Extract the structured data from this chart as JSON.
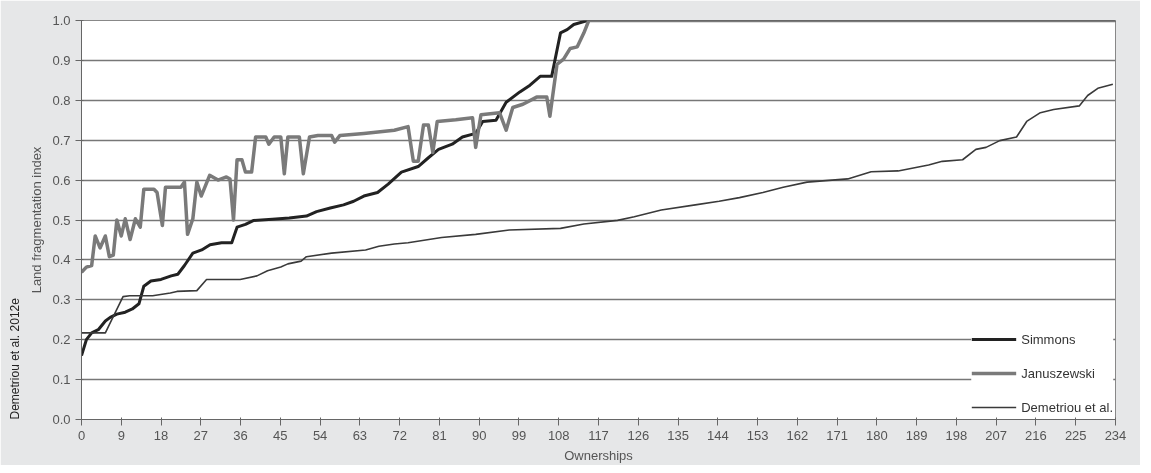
{
  "chart_data": {
    "type": "line",
    "xlabel": "Ownerships",
    "ylabel": "Land fragmentation index",
    "annotations": [
      "Demetriou et al. 2012e"
    ],
    "xlim": [
      0,
      234
    ],
    "xticks": [
      0,
      9,
      18,
      27,
      36,
      45,
      54,
      63,
      72,
      81,
      90,
      99,
      108,
      117,
      126,
      135,
      144,
      153,
      162,
      171,
      180,
      189,
      198,
      207,
      216,
      225,
      234
    ],
    "ylim": [
      0,
      1
    ],
    "yticks": [
      {
        "value": 0,
        "label": "0.0"
      },
      0.1,
      0.2,
      0.3,
      0.4,
      0.5,
      0.6,
      0.7,
      0.8,
      0.9,
      {
        "value": 1,
        "label": "1.0"
      }
    ],
    "grid": "y",
    "legend": "bottom right",
    "marker": "none",
    "line_style": "solid",
    "series": [
      {
        "name": "Simmons",
        "color": "#222222",
        "x": [
          0,
          1.1,
          2.3,
          3.8,
          5.4,
          6.5,
          8,
          9.9,
          11.5,
          13,
          14.1,
          15.7,
          18,
          20.3,
          21.8,
          23.3,
          25.2,
          27.2,
          29.1,
          31.7,
          34,
          35.2,
          37.1,
          39,
          43.2,
          47,
          50.9,
          53.2,
          56.3,
          59.3,
          61.6,
          63.9,
          67,
          69.4,
          72.4,
          76.2,
          78.5,
          80.8,
          83.9,
          86.2,
          89.2,
          90.8,
          93.8,
          96.1,
          99.2,
          101.5,
          103.8,
          106.4,
          108.4,
          109.9,
          111.4,
          114.5,
          234
        ],
        "values": [
          0.16,
          0.2,
          0.217,
          0.225,
          0.247,
          0.256,
          0.264,
          0.269,
          0.277,
          0.29,
          0.334,
          0.347,
          0.351,
          0.36,
          0.364,
          0.386,
          0.417,
          0.425,
          0.438,
          0.443,
          0.443,
          0.482,
          0.489,
          0.499,
          0.502,
          0.505,
          0.51,
          0.521,
          0.53,
          0.538,
          0.547,
          0.56,
          0.569,
          0.59,
          0.62,
          0.634,
          0.656,
          0.677,
          0.69,
          0.708,
          0.717,
          0.747,
          0.75,
          0.795,
          0.821,
          0.838,
          0.86,
          0.86,
          0.969,
          0.977,
          0.99,
          1.0,
          1.0
        ]
      },
      {
        "name": "Januszewski",
        "color": "#7a7a7a",
        "x": [
          0,
          1.1,
          2.3,
          3.1,
          4.2,
          5.4,
          6.3,
          7.2,
          8,
          9,
          9.9,
          11,
          12.2,
          13.3,
          14.1,
          16.4,
          17.1,
          18.3,
          19,
          22.5,
          23.3,
          24,
          25.2,
          26.1,
          27.1,
          29,
          30.9,
          32.8,
          33.6,
          34.4,
          35.2,
          36.3,
          37.1,
          38.5,
          39.4,
          41.7,
          42.4,
          43.6,
          45.1,
          45.9,
          46.7,
          49.3,
          50.2,
          51.6,
          53.5,
          56.6,
          57.3,
          58.5,
          63.9,
          70.8,
          73.9,
          75.1,
          76.2,
          77.4,
          78.5,
          79.5,
          80.5,
          84.7,
          88.5,
          89.2,
          90.4,
          94.6,
          96.1,
          97.6,
          99.9,
          103,
          105.3,
          106,
          107.6,
          109.1,
          110.6,
          112.2,
          113.7,
          114.8,
          234
        ],
        "values": [
          0.369,
          0.382,
          0.386,
          0.46,
          0.43,
          0.46,
          0.408,
          0.412,
          0.5,
          0.46,
          0.503,
          0.451,
          0.503,
          0.482,
          0.577,
          0.577,
          0.569,
          0.486,
          0.582,
          0.582,
          0.595,
          0.464,
          0.503,
          0.595,
          0.56,
          0.612,
          0.6,
          0.608,
          0.603,
          0.5,
          0.651,
          0.651,
          0.62,
          0.62,
          0.708,
          0.708,
          0.69,
          0.708,
          0.708,
          0.616,
          0.708,
          0.708,
          0.616,
          0.708,
          0.712,
          0.712,
          0.695,
          0.712,
          0.717,
          0.725,
          0.734,
          0.647,
          0.647,
          0.738,
          0.738,
          0.669,
          0.747,
          0.751,
          0.756,
          0.682,
          0.764,
          0.769,
          0.725,
          0.782,
          0.79,
          0.808,
          0.808,
          0.76,
          0.89,
          0.903,
          0.93,
          0.934,
          0.969,
          1.0,
          1.0
        ]
      },
      {
        "name": "Demetriou et al.",
        "color": "#3a3a3a",
        "x": [
          0,
          5.4,
          6.3,
          9.4,
          10.9,
          16.1,
          20.1,
          21.6,
          26.1,
          28.3,
          30.6,
          35.9,
          39.7,
          42.1,
          45.1,
          46.7,
          49.7,
          50.9,
          56.6,
          64.3,
          67.3,
          70.8,
          73.9,
          81.5,
          89.2,
          96.8,
          108.4,
          113.7,
          121.3,
          125.1,
          131.2,
          138.9,
          144.3,
          148.9,
          154.2,
          158.8,
          164.2,
          173.4,
          178.7,
          184.8,
          191.7,
          194.8,
          199.4,
          202.4,
          204.7,
          207.8,
          211.6,
          213.9,
          217,
          220,
          225.8,
          227.7,
          230,
          233.4
        ],
        "values": [
          0.217,
          0.217,
          0.238,
          0.308,
          0.31,
          0.31,
          0.317,
          0.321,
          0.323,
          0.351,
          0.351,
          0.351,
          0.36,
          0.373,
          0.382,
          0.39,
          0.397,
          0.408,
          0.417,
          0.425,
          0.434,
          0.44,
          0.443,
          0.456,
          0.464,
          0.475,
          0.479,
          0.49,
          0.499,
          0.508,
          0.525,
          0.538,
          0.547,
          0.556,
          0.569,
          0.582,
          0.595,
          0.603,
          0.621,
          0.623,
          0.638,
          0.647,
          0.651,
          0.677,
          0.682,
          0.699,
          0.708,
          0.747,
          0.769,
          0.777,
          0.786,
          0.812,
          0.83,
          0.84
        ]
      }
    ]
  }
}
